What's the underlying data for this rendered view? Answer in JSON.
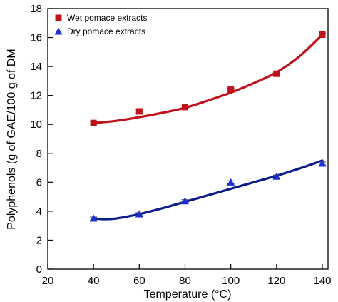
{
  "chart_data": {
    "type": "scatter",
    "xlabel": "Temperature (°C)",
    "ylabel": "Polyphenols (g of GAE/100 g of DM",
    "xlim": [
      20,
      145
    ],
    "ylim": [
      0,
      18
    ],
    "xticks": [
      20,
      40,
      60,
      80,
      100,
      120,
      140
    ],
    "yticks": [
      0,
      2,
      4,
      6,
      8,
      10,
      12,
      14,
      16,
      18
    ],
    "grid": false,
    "legend": "top-left",
    "series": [
      {
        "name": "Wet pomace extracts",
        "marker": "square",
        "color": "#c0121a",
        "line_color": "#c0121a",
        "x": [
          40,
          60,
          80,
          100,
          120,
          140
        ],
        "y": [
          10.1,
          10.9,
          11.2,
          12.4,
          13.5,
          16.2
        ],
        "fit": [
          [
            40,
            10.1
          ],
          [
            50,
            10.25
          ],
          [
            60,
            10.5
          ],
          [
            70,
            10.8
          ],
          [
            80,
            11.15
          ],
          [
            90,
            11.65
          ],
          [
            100,
            12.2
          ],
          [
            110,
            12.85
          ],
          [
            120,
            13.6
          ],
          [
            130,
            14.7
          ],
          [
            140,
            16.2
          ]
        ]
      },
      {
        "name": "Dry pomace extracts",
        "marker": "triangle",
        "color": "#1a2fd6",
        "line_color": "#0c1c8c",
        "x": [
          40,
          60,
          80,
          100,
          120,
          140
        ],
        "y": [
          3.5,
          3.8,
          4.7,
          6.0,
          6.4,
          7.3
        ],
        "fit": [
          [
            40,
            3.5
          ],
          [
            45,
            3.45
          ],
          [
            50,
            3.5
          ],
          [
            60,
            3.8
          ],
          [
            70,
            4.2
          ],
          [
            80,
            4.65
          ],
          [
            90,
            5.1
          ],
          [
            100,
            5.55
          ],
          [
            110,
            6.0
          ],
          [
            120,
            6.45
          ],
          [
            130,
            6.95
          ],
          [
            140,
            7.5
          ]
        ]
      }
    ]
  }
}
